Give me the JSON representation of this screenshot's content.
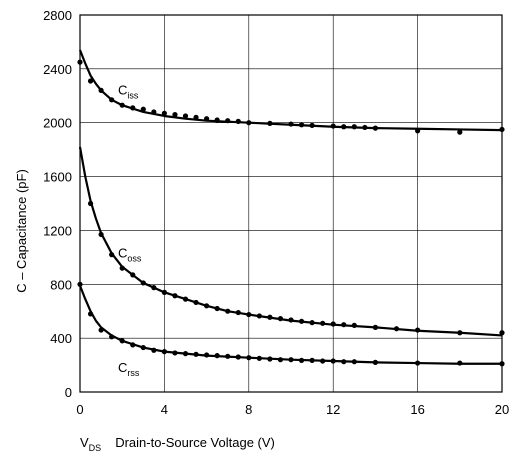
{
  "chart_data": {
    "type": "line",
    "title": "",
    "xlabel_main": "V",
    "xlabel_sub": "DS",
    "xlabel_rest": "Drain-to-Source Voltage (V)",
    "ylabel": "C – Capacitance (pF)",
    "xlim": [
      0,
      20
    ],
    "ylim": [
      0,
      2800
    ],
    "x_ticks": [
      "0",
      "4",
      "8",
      "12",
      "16",
      "20"
    ],
    "y_ticks": [
      "0",
      "400",
      "800",
      "1200",
      "1600",
      "2000",
      "2400",
      "2800"
    ],
    "grid": true,
    "series": [
      {
        "name_main": "C",
        "name_sub": "iss",
        "label_at": [
          1.8,
          2210
        ],
        "curve": [
          [
            0,
            2540
          ],
          [
            0.25,
            2440
          ],
          [
            0.5,
            2350
          ],
          [
            0.75,
            2290
          ],
          [
            1,
            2240
          ],
          [
            1.5,
            2170
          ],
          [
            2,
            2130
          ],
          [
            3,
            2080
          ],
          [
            4,
            2050
          ],
          [
            5,
            2030
          ],
          [
            6,
            2015
          ],
          [
            8,
            2000
          ],
          [
            10,
            1985
          ],
          [
            12,
            1970
          ],
          [
            14,
            1960
          ],
          [
            16,
            1955
          ],
          [
            18,
            1950
          ],
          [
            20,
            1945
          ]
        ],
        "points": [
          [
            0,
            2450
          ],
          [
            0.5,
            2310
          ],
          [
            1,
            2240
          ],
          [
            1.5,
            2170
          ],
          [
            2,
            2130
          ],
          [
            2.5,
            2110
          ],
          [
            3,
            2100
          ],
          [
            3.5,
            2080
          ],
          [
            4,
            2070
          ],
          [
            4.5,
            2060
          ],
          [
            5,
            2050
          ],
          [
            5.5,
            2040
          ],
          [
            6,
            2030
          ],
          [
            6.5,
            2020
          ],
          [
            7,
            2015
          ],
          [
            7.5,
            2010
          ],
          [
            8,
            2000
          ],
          [
            9,
            1995
          ],
          [
            10,
            1990
          ],
          [
            10.5,
            1985
          ],
          [
            11,
            1980
          ],
          [
            12,
            1975
          ],
          [
            12.5,
            1970
          ],
          [
            13,
            1970
          ],
          [
            13.5,
            1965
          ],
          [
            14,
            1960
          ],
          [
            16,
            1940
          ],
          [
            18,
            1930
          ],
          [
            20,
            1950
          ]
        ]
      },
      {
        "name_main": "C",
        "name_sub": "oss",
        "label_at": [
          1.8,
          1000
        ],
        "curve": [
          [
            0,
            1820
          ],
          [
            0.25,
            1600
          ],
          [
            0.5,
            1420
          ],
          [
            0.75,
            1290
          ],
          [
            1,
            1180
          ],
          [
            1.5,
            1030
          ],
          [
            2,
            930
          ],
          [
            3,
            810
          ],
          [
            4,
            740
          ],
          [
            5,
            690
          ],
          [
            6,
            640
          ],
          [
            7,
            600
          ],
          [
            8,
            575
          ],
          [
            10,
            530
          ],
          [
            12,
            500
          ],
          [
            14,
            480
          ],
          [
            16,
            455
          ],
          [
            18,
            440
          ],
          [
            20,
            420
          ]
        ],
        "points": [
          [
            0.5,
            1400
          ],
          [
            1,
            1170
          ],
          [
            1.5,
            1020
          ],
          [
            2,
            920
          ],
          [
            2.5,
            870
          ],
          [
            3,
            810
          ],
          [
            3.5,
            775
          ],
          [
            4,
            740
          ],
          [
            4.5,
            715
          ],
          [
            5,
            690
          ],
          [
            5.5,
            665
          ],
          [
            6,
            640
          ],
          [
            6.5,
            620
          ],
          [
            7,
            600
          ],
          [
            7.5,
            590
          ],
          [
            8,
            575
          ],
          [
            8.5,
            565
          ],
          [
            9,
            555
          ],
          [
            9.5,
            545
          ],
          [
            10,
            535
          ],
          [
            10.5,
            525
          ],
          [
            11,
            515
          ],
          [
            11.5,
            510
          ],
          [
            12,
            505
          ],
          [
            12.5,
            500
          ],
          [
            13,
            495
          ],
          [
            14,
            480
          ],
          [
            15,
            470
          ],
          [
            16,
            460
          ],
          [
            18,
            440
          ],
          [
            20,
            440
          ]
        ]
      },
      {
        "name_main": "C",
        "name_sub": "rss",
        "label_at": [
          1.8,
          150
        ],
        "curve": [
          [
            0,
            790
          ],
          [
            0.25,
            690
          ],
          [
            0.5,
            600
          ],
          [
            0.75,
            530
          ],
          [
            1,
            480
          ],
          [
            1.5,
            420
          ],
          [
            2,
            380
          ],
          [
            3,
            330
          ],
          [
            4,
            300
          ],
          [
            5,
            285
          ],
          [
            6,
            270
          ],
          [
            8,
            255
          ],
          [
            10,
            240
          ],
          [
            12,
            230
          ],
          [
            14,
            220
          ],
          [
            16,
            215
          ],
          [
            18,
            210
          ],
          [
            20,
            210
          ]
        ],
        "points": [
          [
            0,
            800
          ],
          [
            0.5,
            580
          ],
          [
            1,
            460
          ],
          [
            1.5,
            410
          ],
          [
            2,
            380
          ],
          [
            2.5,
            350
          ],
          [
            3,
            330
          ],
          [
            3.5,
            310
          ],
          [
            4,
            300
          ],
          [
            4.5,
            290
          ],
          [
            5,
            285
          ],
          [
            5.5,
            280
          ],
          [
            6,
            275
          ],
          [
            6.5,
            270
          ],
          [
            7,
            265
          ],
          [
            7.5,
            260
          ],
          [
            8,
            255
          ],
          [
            8.5,
            250
          ],
          [
            9,
            245
          ],
          [
            9.5,
            240
          ],
          [
            10,
            240
          ],
          [
            10.5,
            235
          ],
          [
            11,
            235
          ],
          [
            11.5,
            230
          ],
          [
            12,
            230
          ],
          [
            12.5,
            225
          ],
          [
            13,
            225
          ],
          [
            14,
            220
          ],
          [
            16,
            215
          ],
          [
            18,
            215
          ],
          [
            20,
            210
          ]
        ]
      }
    ]
  }
}
